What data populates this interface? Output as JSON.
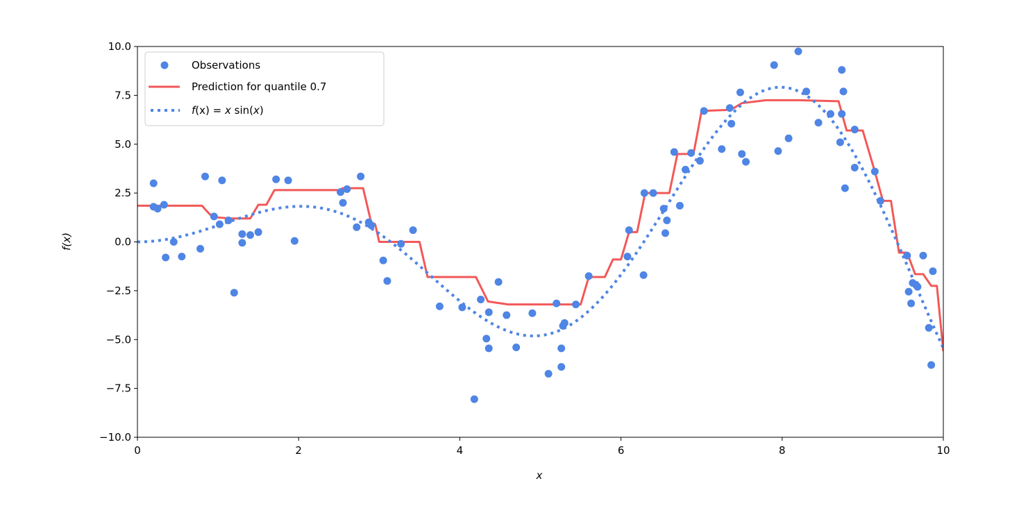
{
  "chart_data": {
    "type": "scatter",
    "xlabel": "x",
    "ylabel": "f(x)",
    "xlim": [
      0,
      10
    ],
    "ylim": [
      -10,
      10
    ],
    "xticks": [
      0,
      2,
      4,
      6,
      8,
      10
    ],
    "xtick_labels": [
      "0",
      "2",
      "4",
      "6",
      "8",
      "10"
    ],
    "yticks": [
      -10,
      -7.5,
      -5,
      -2.5,
      0,
      2.5,
      5,
      7.5,
      10
    ],
    "ytick_labels": [
      "−10.0",
      "−7.5",
      "−5.0",
      "−2.5",
      "0.0",
      "2.5",
      "5.0",
      "7.5",
      "10.0"
    ],
    "grid": false,
    "legend_position": "top-left",
    "series": [
      {
        "name": "Observations",
        "kind": "scatter",
        "color": "#4f85e4",
        "points": [
          [
            0.2,
            3.0
          ],
          [
            0.2,
            1.8
          ],
          [
            0.25,
            1.7
          ],
          [
            0.33,
            1.9
          ],
          [
            0.35,
            -0.8
          ],
          [
            0.45,
            0.0
          ],
          [
            0.55,
            -0.75
          ],
          [
            0.78,
            -0.35
          ],
          [
            0.84,
            3.35
          ],
          [
            0.95,
            1.3
          ],
          [
            1.02,
            0.9
          ],
          [
            1.05,
            3.15
          ],
          [
            1.13,
            1.1
          ],
          [
            1.2,
            -2.6
          ],
          [
            1.3,
            0.4
          ],
          [
            1.3,
            -0.05
          ],
          [
            1.4,
            0.35
          ],
          [
            1.5,
            0.5
          ],
          [
            1.72,
            3.2
          ],
          [
            1.87,
            3.15
          ],
          [
            1.95,
            0.05
          ],
          [
            2.52,
            2.55
          ],
          [
            2.55,
            2.0
          ],
          [
            2.6,
            2.7
          ],
          [
            2.72,
            0.75
          ],
          [
            2.77,
            3.35
          ],
          [
            2.87,
            1.0
          ],
          [
            2.9,
            0.85
          ],
          [
            3.05,
            -0.95
          ],
          [
            3.1,
            -2.0
          ],
          [
            3.27,
            -0.1
          ],
          [
            3.42,
            0.6
          ],
          [
            3.75,
            -3.3
          ],
          [
            4.03,
            -3.35
          ],
          [
            4.18,
            -8.05
          ],
          [
            4.26,
            -2.95
          ],
          [
            4.33,
            -4.95
          ],
          [
            4.36,
            -5.45
          ],
          [
            4.36,
            -3.6
          ],
          [
            4.48,
            -2.05
          ],
          [
            4.58,
            -3.75
          ],
          [
            4.7,
            -5.4
          ],
          [
            4.9,
            -3.65
          ],
          [
            5.1,
            -6.75
          ],
          [
            5.2,
            -3.15
          ],
          [
            5.26,
            -5.45
          ],
          [
            5.26,
            -6.4
          ],
          [
            5.3,
            -4.15
          ],
          [
            5.28,
            -4.3
          ],
          [
            5.44,
            -3.2
          ],
          [
            5.6,
            -1.75
          ],
          [
            6.08,
            -0.75
          ],
          [
            6.1,
            0.6
          ],
          [
            6.28,
            -1.7
          ],
          [
            6.29,
            2.5
          ],
          [
            6.4,
            2.5
          ],
          [
            6.53,
            1.7
          ],
          [
            6.55,
            0.45
          ],
          [
            6.57,
            1.1
          ],
          [
            6.66,
            4.6
          ],
          [
            6.73,
            1.85
          ],
          [
            6.8,
            3.7
          ],
          [
            6.87,
            4.55
          ],
          [
            6.98,
            4.15
          ],
          [
            7.03,
            6.7
          ],
          [
            7.25,
            4.75
          ],
          [
            7.35,
            6.85
          ],
          [
            7.37,
            6.05
          ],
          [
            7.48,
            7.65
          ],
          [
            7.5,
            4.5
          ],
          [
            7.55,
            4.1
          ],
          [
            7.9,
            9.05
          ],
          [
            7.95,
            4.65
          ],
          [
            8.08,
            5.3
          ],
          [
            8.2,
            9.75
          ],
          [
            8.3,
            7.7
          ],
          [
            8.45,
            6.1
          ],
          [
            8.6,
            6.55
          ],
          [
            8.72,
            5.1
          ],
          [
            8.74,
            8.8
          ],
          [
            8.74,
            6.55
          ],
          [
            8.76,
            7.7
          ],
          [
            8.78,
            2.75
          ],
          [
            8.9,
            5.75
          ],
          [
            8.9,
            3.8
          ],
          [
            9.15,
            3.6
          ],
          [
            9.22,
            2.1
          ],
          [
            9.55,
            -0.7
          ],
          [
            9.57,
            -2.55
          ],
          [
            9.6,
            -3.15
          ],
          [
            9.62,
            -2.1
          ],
          [
            9.66,
            -2.2
          ],
          [
            9.68,
            -2.3
          ],
          [
            9.75,
            -0.7
          ],
          [
            9.82,
            -4.4
          ],
          [
            9.85,
            -6.3
          ],
          [
            9.87,
            -1.5
          ]
        ]
      },
      {
        "name": "Prediction for quantile 0.7",
        "kind": "step-line",
        "color": "#f25858",
        "points": [
          [
            0.0,
            1.85
          ],
          [
            0.8,
            1.85
          ],
          [
            0.9,
            1.4
          ],
          [
            1.0,
            1.25
          ],
          [
            1.15,
            1.2
          ],
          [
            1.4,
            1.2
          ],
          [
            1.5,
            1.9
          ],
          [
            1.6,
            1.9
          ],
          [
            1.7,
            2.65
          ],
          [
            2.5,
            2.65
          ],
          [
            2.55,
            2.75
          ],
          [
            2.8,
            2.75
          ],
          [
            2.9,
            1.0
          ],
          [
            2.95,
            0.9
          ],
          [
            3.0,
            0.0
          ],
          [
            3.5,
            0.0
          ],
          [
            3.6,
            -1.8
          ],
          [
            4.2,
            -1.8
          ],
          [
            4.35,
            -3.05
          ],
          [
            4.6,
            -3.2
          ],
          [
            5.4,
            -3.2
          ],
          [
            5.5,
            -3.2
          ],
          [
            5.6,
            -1.8
          ],
          [
            5.8,
            -1.8
          ],
          [
            5.9,
            -0.9
          ],
          [
            6.0,
            -0.9
          ],
          [
            6.1,
            0.5
          ],
          [
            6.2,
            0.5
          ],
          [
            6.3,
            2.5
          ],
          [
            6.6,
            2.5
          ],
          [
            6.7,
            4.5
          ],
          [
            6.9,
            4.5
          ],
          [
            7.0,
            6.7
          ],
          [
            7.3,
            6.75
          ],
          [
            7.4,
            6.85
          ],
          [
            7.5,
            7.1
          ],
          [
            7.8,
            7.25
          ],
          [
            8.2,
            7.25
          ],
          [
            8.7,
            7.2
          ],
          [
            8.8,
            5.7
          ],
          [
            9.0,
            5.7
          ],
          [
            9.15,
            3.6
          ],
          [
            9.25,
            2.1
          ],
          [
            9.35,
            2.1
          ],
          [
            9.45,
            -0.55
          ],
          [
            9.55,
            -0.55
          ],
          [
            9.65,
            -1.65
          ],
          [
            9.75,
            -1.65
          ],
          [
            9.85,
            -2.25
          ],
          [
            9.92,
            -2.25
          ],
          [
            10.0,
            -5.6
          ]
        ]
      },
      {
        "name": "f(x) = x sin(x)",
        "kind": "dotted-line",
        "function": "x*sin(x)",
        "color": "#4f85e4",
        "xrange": [
          0,
          10
        ]
      }
    ]
  },
  "legend": {
    "items": [
      {
        "label": "Observations"
      },
      {
        "label": "Prediction for quantile 0.7"
      },
      {
        "label_parts": [
          "f",
          "(x) = ",
          "x",
          " sin(",
          "x",
          ")"
        ]
      }
    ]
  }
}
